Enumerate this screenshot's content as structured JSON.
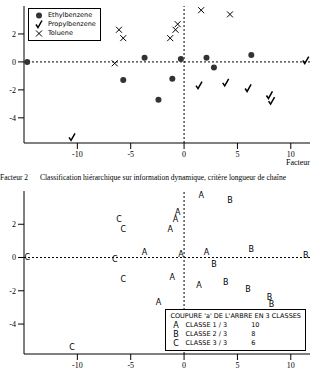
{
  "chart_data": [
    {
      "type": "scatter",
      "x_label": "Facteur",
      "xlim": [
        -15,
        11.8
      ],
      "xticks": [
        -10,
        -5,
        0,
        5,
        10
      ],
      "ylim": [
        -5.8,
        4
      ],
      "yticks": [
        -4,
        -2,
        0,
        2
      ],
      "legend": "upper left",
      "series": [
        {
          "name": "Ethylbenzene",
          "marker": "circle",
          "color": "#333333",
          "x": [
            -0.3,
            -3.7,
            2.1,
            -1.1,
            -2.4,
            2.8,
            6.3,
            -5.7,
            -14.7
          ],
          "y": [
            0.2,
            0.3,
            0.3,
            -1.2,
            -2.7,
            -0.4,
            0.5,
            -1.3,
            0
          ]
        },
        {
          "name": "Propylbenzene",
          "marker": "check",
          "color": "#000000",
          "x": [
            1.4,
            11.4,
            3.9,
            6.0,
            8.0,
            8.2,
            -10.5
          ],
          "y": [
            -1.7,
            0.1,
            -1.5,
            -1.9,
            -2.4,
            -2.8,
            -5.4
          ]
        },
        {
          "name": "Toluene",
          "marker": "x",
          "color": "#000000",
          "x": [
            1.6,
            -0.6,
            -0.8,
            -1.3,
            4.3,
            -6.1,
            -5.7,
            -6.5
          ],
          "y": [
            3.7,
            2.7,
            2.3,
            1.7,
            3.4,
            2.3,
            1.7,
            -0.1
          ]
        }
      ]
    },
    {
      "type": "scatter",
      "title": "Classification hiérarchique sur information dynamique, critère longueur de chaîne",
      "y_label": "Facteur 2",
      "xlim": [
        -15,
        11.8
      ],
      "xticks": [
        -10,
        -5,
        0,
        5,
        10
      ],
      "ylim": [
        -5.8,
        4
      ],
      "yticks": [
        -4,
        -2,
        0,
        2
      ],
      "legend": "lower right",
      "legend_title": "COUPURE 'a' DE L'ARBRE EN 3 CLASSES",
      "series": [
        {
          "name": "CLASSE 1 / 3",
          "count": 10,
          "marker": "A",
          "color": "#000000",
          "x": [
            1.6,
            -0.6,
            -0.8,
            -1.3,
            -0.3,
            -3.7,
            2.1,
            -1.1,
            -2.4,
            1.4
          ],
          "y": [
            3.7,
            2.7,
            2.3,
            1.7,
            0.2,
            0.3,
            0.3,
            -1.2,
            -2.7,
            -1.7
          ]
        },
        {
          "name": "CLASSE 2 / 3",
          "count": 8,
          "marker": "B",
          "color": "#000000",
          "x": [
            4.3,
            11.4,
            2.8,
            3.9,
            6.0,
            8.0,
            8.2,
            6.3
          ],
          "y": [
            3.4,
            0.1,
            -0.4,
            -1.5,
            -1.9,
            -2.4,
            -2.8,
            0.5
          ]
        },
        {
          "name": "CLASSE 3 / 3",
          "count": 6,
          "marker": "C",
          "color": "#000000",
          "x": [
            -6.1,
            -5.7,
            -6.5,
            -5.7,
            -14.7,
            -10.5
          ],
          "y": [
            2.3,
            1.7,
            -0.1,
            -1.3,
            0,
            -5.4
          ]
        }
      ]
    }
  ]
}
